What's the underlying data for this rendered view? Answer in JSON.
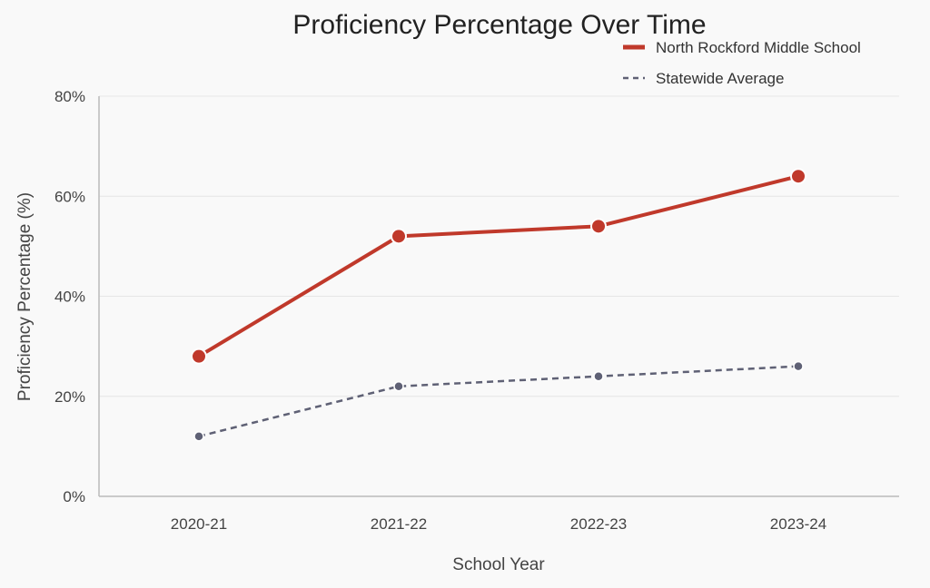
{
  "chart_data": {
    "type": "line",
    "title": "Proficiency Percentage Over Time",
    "xlabel": "School Year",
    "ylabel": "Proficiency Percentage (%)",
    "categories": [
      "2020-21",
      "2021-22",
      "2022-23",
      "2023-24"
    ],
    "ylim": [
      0,
      80
    ],
    "yticks": [
      "0%",
      "20%",
      "40%",
      "60%",
      "80%"
    ],
    "ytick_values": [
      0,
      20,
      40,
      60,
      80
    ],
    "grid": true,
    "legend_position": "top-right",
    "series": [
      {
        "name": "North Rockford Middle School",
        "values": [
          28,
          52,
          54,
          64
        ],
        "color": "#c0392b",
        "style": "solid"
      },
      {
        "name": "Statewide Average",
        "values": [
          12,
          22,
          24,
          26
        ],
        "color": "#5f6175",
        "style": "dashed"
      }
    ]
  }
}
